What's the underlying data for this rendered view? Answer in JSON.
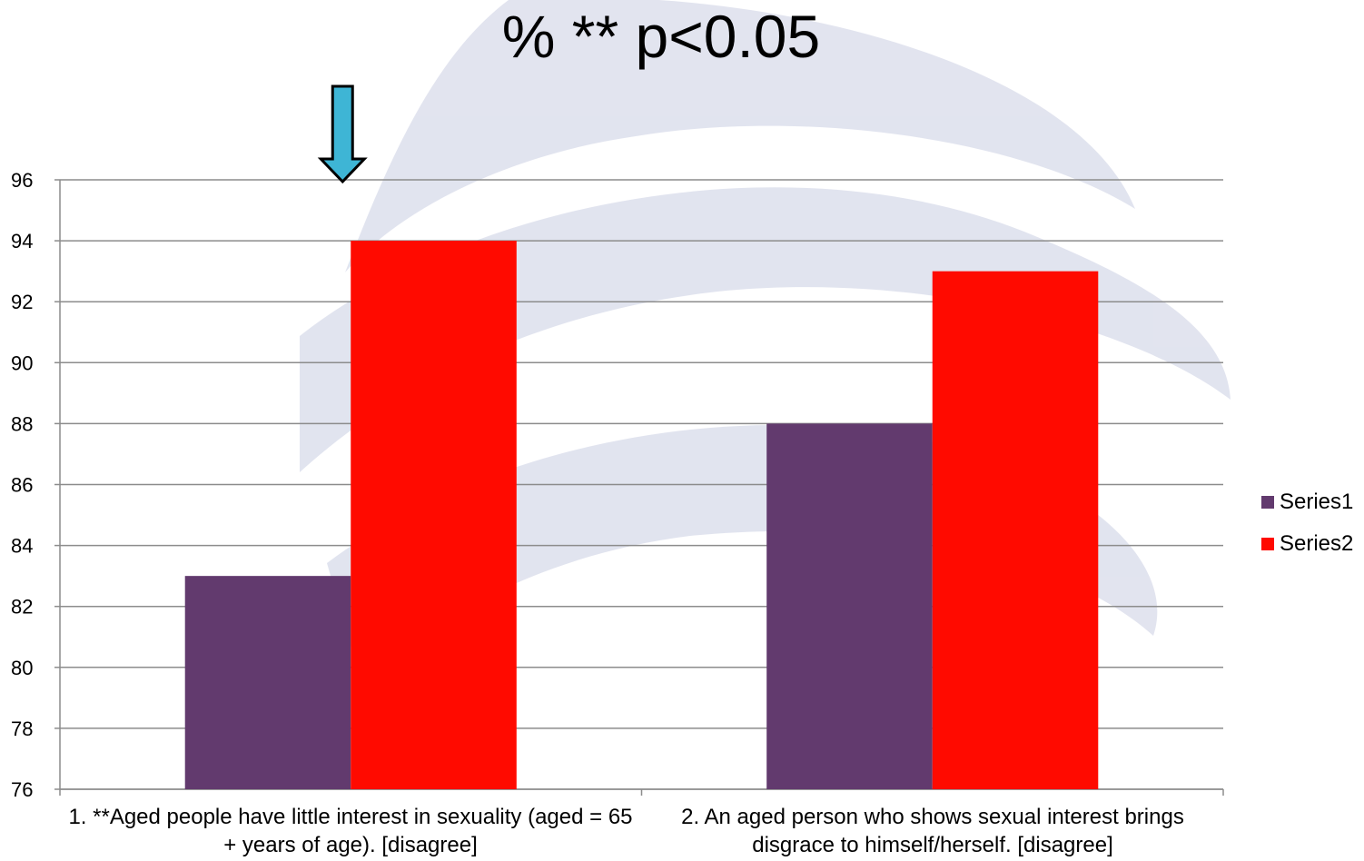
{
  "chart_data": {
    "type": "bar",
    "title": "% ** p<0.05",
    "categories": [
      "1. **Aged people have little interest in sexuality (aged = 65 + years of age). [disagree]",
      "2. An aged person who shows sexual interest brings disgrace to himself/herself. [disagree]"
    ],
    "series": [
      {
        "name": "Series1",
        "color": "#623a6e",
        "values": [
          83,
          88
        ]
      },
      {
        "name": "Series2",
        "color": "#ff0a00",
        "values": [
          94,
          93
        ]
      }
    ],
    "ylim": [
      76,
      96
    ],
    "yticks": [
      76,
      78,
      80,
      82,
      84,
      86,
      88,
      90,
      92,
      94,
      96
    ],
    "grid": true,
    "legend": "right",
    "annotation": {
      "type": "arrow-down",
      "icon": "arrow-down-icon",
      "color": "#3eb5d5",
      "target_category": 0
    }
  }
}
